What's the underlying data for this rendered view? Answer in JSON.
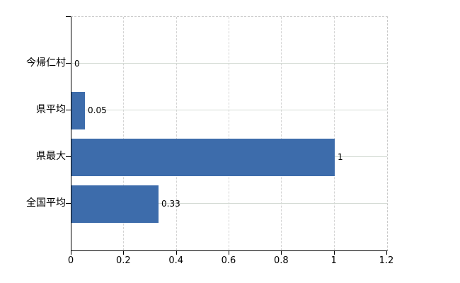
{
  "chart_data": {
    "type": "bar",
    "orientation": "horizontal",
    "title": "",
    "xlabel": "",
    "ylabel": "",
    "categories": [
      "今帰仁村",
      "県平均",
      "県最大",
      "全国平均"
    ],
    "values": [
      0,
      0.05,
      1,
      0.33
    ],
    "value_labels": [
      "0",
      "0.05",
      "1",
      "0.33"
    ],
    "x_ticks": [
      0,
      0.2,
      0.4,
      0.6,
      0.8,
      1,
      1.2
    ],
    "x_tick_labels": [
      "0",
      "0.2",
      "0.4",
      "0.6",
      "0.8",
      "1",
      "1.2"
    ],
    "xlim": [
      0,
      1.2
    ],
    "grid": {
      "horizontal": true,
      "vertical": true
    },
    "legend": "none",
    "colors": {
      "bar": "#3d6cab",
      "h_grid": "#d4dbd4",
      "v_grid": "#d3d3d3",
      "plot_border": "#c9c9c9",
      "axis": "#000000",
      "text": "#000000",
      "background": "#ffffff"
    }
  }
}
